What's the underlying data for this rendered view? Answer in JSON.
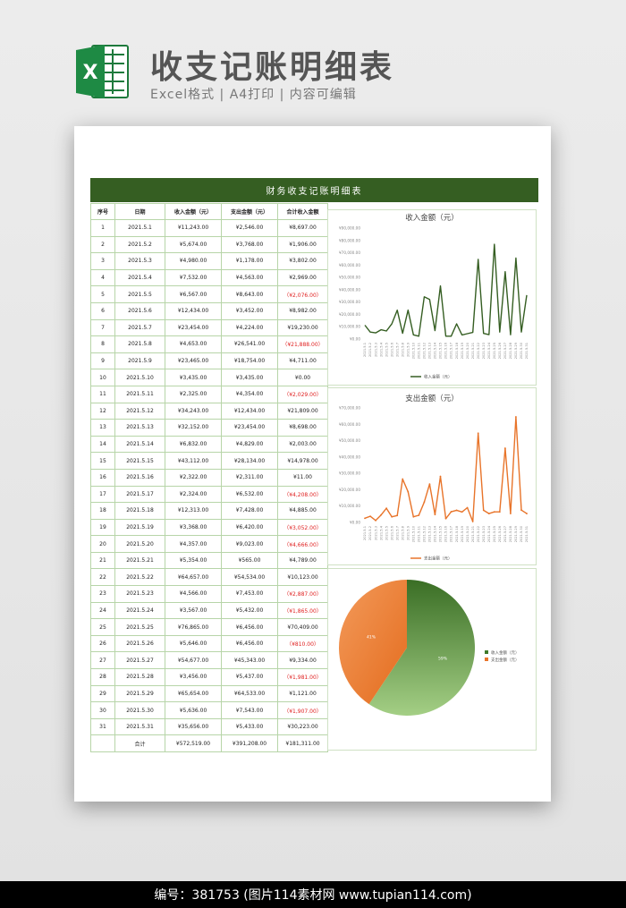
{
  "header": {
    "title": "收支记账明细表",
    "subtitle": "Excel格式 | A4打印 | 内容可编辑",
    "icon_letter": "X"
  },
  "sheet": {
    "banner": "财务收支记账明细表",
    "columns": [
      "序号",
      "日期",
      "收入金额（元）",
      "支出金额（元）",
      "合计收入金额"
    ],
    "rows": [
      {
        "no": "1",
        "date": "2021.5.1",
        "income": "¥11,243.00",
        "expense": "¥2,546.00",
        "total": "¥8,697.00",
        "neg": false
      },
      {
        "no": "2",
        "date": "2021.5.2",
        "income": "¥5,674.00",
        "expense": "¥3,768.00",
        "total": "¥1,906.00",
        "neg": false
      },
      {
        "no": "3",
        "date": "2021.5.3",
        "income": "¥4,980.00",
        "expense": "¥1,178.00",
        "total": "¥3,802.00",
        "neg": false
      },
      {
        "no": "4",
        "date": "2021.5.4",
        "income": "¥7,532.00",
        "expense": "¥4,563.00",
        "total": "¥2,969.00",
        "neg": false
      },
      {
        "no": "5",
        "date": "2021.5.5",
        "income": "¥6,567.00",
        "expense": "¥8,643.00",
        "total": "（¥2,076.00）",
        "neg": true
      },
      {
        "no": "6",
        "date": "2021.5.6",
        "income": "¥12,434.00",
        "expense": "¥3,452.00",
        "total": "¥8,982.00",
        "neg": false
      },
      {
        "no": "7",
        "date": "2021.5.7",
        "income": "¥23,454.00",
        "expense": "¥4,224.00",
        "total": "¥19,230.00",
        "neg": false
      },
      {
        "no": "8",
        "date": "2021.5.8",
        "income": "¥4,653.00",
        "expense": "¥26,541.00",
        "total": "（¥21,888.00）",
        "neg": true
      },
      {
        "no": "9",
        "date": "2021.5.9",
        "income": "¥23,465.00",
        "expense": "¥18,754.00",
        "total": "¥4,711.00",
        "neg": false
      },
      {
        "no": "10",
        "date": "2021.5.10",
        "income": "¥3,435.00",
        "expense": "¥3,435.00",
        "total": "¥0.00",
        "neg": false
      },
      {
        "no": "11",
        "date": "2021.5.11",
        "income": "¥2,325.00",
        "expense": "¥4,354.00",
        "total": "（¥2,029.00）",
        "neg": true
      },
      {
        "no": "12",
        "date": "2021.5.12",
        "income": "¥34,243.00",
        "expense": "¥12,434.00",
        "total": "¥21,809.00",
        "neg": false
      },
      {
        "no": "13",
        "date": "2021.5.13",
        "income": "¥32,152.00",
        "expense": "¥23,454.00",
        "total": "¥8,698.00",
        "neg": false
      },
      {
        "no": "14",
        "date": "2021.5.14",
        "income": "¥6,832.00",
        "expense": "¥4,829.00",
        "total": "¥2,003.00",
        "neg": false
      },
      {
        "no": "15",
        "date": "2021.5.15",
        "income": "¥43,112.00",
        "expense": "¥28,134.00",
        "total": "¥14,978.00",
        "neg": false
      },
      {
        "no": "16",
        "date": "2021.5.16",
        "income": "¥2,322.00",
        "expense": "¥2,311.00",
        "total": "¥11.00",
        "neg": false
      },
      {
        "no": "17",
        "date": "2021.5.17",
        "income": "¥2,324.00",
        "expense": "¥6,532.00",
        "total": "（¥4,208.00）",
        "neg": true
      },
      {
        "no": "18",
        "date": "2021.5.18",
        "income": "¥12,313.00",
        "expense": "¥7,428.00",
        "total": "¥4,885.00",
        "neg": false
      },
      {
        "no": "19",
        "date": "2021.5.19",
        "income": "¥3,368.00",
        "expense": "¥6,420.00",
        "total": "（¥3,052.00）",
        "neg": true
      },
      {
        "no": "20",
        "date": "2021.5.20",
        "income": "¥4,357.00",
        "expense": "¥9,023.00",
        "total": "（¥4,666.00）",
        "neg": true
      },
      {
        "no": "21",
        "date": "2021.5.21",
        "income": "¥5,354.00",
        "expense": "¥565.00",
        "total": "¥4,789.00",
        "neg": false
      },
      {
        "no": "22",
        "date": "2021.5.22",
        "income": "¥64,657.00",
        "expense": "¥54,534.00",
        "total": "¥10,123.00",
        "neg": false
      },
      {
        "no": "23",
        "date": "2021.5.23",
        "income": "¥4,566.00",
        "expense": "¥7,453.00",
        "total": "（¥2,887.00）",
        "neg": true
      },
      {
        "no": "24",
        "date": "2021.5.24",
        "income": "¥3,567.00",
        "expense": "¥5,432.00",
        "total": "（¥1,865.00）",
        "neg": true
      },
      {
        "no": "25",
        "date": "2021.5.25",
        "income": "¥76,865.00",
        "expense": "¥6,456.00",
        "total": "¥70,409.00",
        "neg": false
      },
      {
        "no": "26",
        "date": "2021.5.26",
        "income": "¥5,646.00",
        "expense": "¥6,456.00",
        "total": "（¥810.00）",
        "neg": true
      },
      {
        "no": "27",
        "date": "2021.5.27",
        "income": "¥54,677.00",
        "expense": "¥45,343.00",
        "total": "¥9,334.00",
        "neg": false
      },
      {
        "no": "28",
        "date": "2021.5.28",
        "income": "¥3,456.00",
        "expense": "¥5,437.00",
        "total": "（¥1,981.00）",
        "neg": true
      },
      {
        "no": "29",
        "date": "2021.5.29",
        "income": "¥65,654.00",
        "expense": "¥64,533.00",
        "total": "¥1,121.00",
        "neg": false
      },
      {
        "no": "30",
        "date": "2021.5.30",
        "income": "¥5,636.00",
        "expense": "¥7,543.00",
        "total": "（¥1,907.00）",
        "neg": true
      },
      {
        "no": "31",
        "date": "2021.5.31",
        "income": "¥35,656.00",
        "expense": "¥5,433.00",
        "total": "¥30,223.00",
        "neg": false
      }
    ],
    "totals": {
      "label": "合计",
      "income": "¥572,519.00",
      "expense": "¥391,208.00",
      "total": "¥181,311.00"
    }
  },
  "chart_data": [
    {
      "type": "line",
      "title": "收入金额（元）",
      "legend": "收入金额（元）",
      "color": "#355e22",
      "ylim": [
        0,
        90000
      ],
      "y_ticks": [
        "¥0.00",
        "¥10,000.00",
        "¥20,000.00",
        "¥30,000.00",
        "¥40,000.00",
        "¥50,000.00",
        "¥60,000.00",
        "¥70,000.00",
        "¥80,000.00",
        "¥90,000.00"
      ],
      "categories": [
        "2021.5.1",
        "2021.5.2",
        "2021.5.3",
        "2021.5.4",
        "2021.5.5",
        "2021.5.6",
        "2021.5.7",
        "2021.5.8",
        "2021.5.9",
        "2021.5.10",
        "2021.5.11",
        "2021.5.12",
        "2021.5.13",
        "2021.5.14",
        "2021.5.15",
        "2021.5.16",
        "2021.5.17",
        "2021.5.18",
        "2021.5.19",
        "2021.5.20",
        "2021.5.21",
        "2021.5.22",
        "2021.5.23",
        "2021.5.24",
        "2021.5.25",
        "2021.5.26",
        "2021.5.27",
        "2021.5.28",
        "2021.5.29",
        "2021.5.30",
        "2021.5.31"
      ],
      "values": [
        11243,
        5674,
        4980,
        7532,
        6567,
        12434,
        23454,
        4653,
        23465,
        3435,
        2325,
        34243,
        32152,
        6832,
        43112,
        2322,
        2324,
        12313,
        3368,
        4357,
        5354,
        64657,
        4566,
        3567,
        76865,
        5646,
        54677,
        3456,
        65654,
        5636,
        35656
      ]
    },
    {
      "type": "line",
      "title": "支出金额（元）",
      "legend": "支出金额（元）",
      "color": "#e8742a",
      "ylim": [
        0,
        70000
      ],
      "y_ticks": [
        "¥0.00",
        "¥10,000.00",
        "¥20,000.00",
        "¥30,000.00",
        "¥40,000.00",
        "¥50,000.00",
        "¥60,000.00",
        "¥70,000.00"
      ],
      "categories": [
        "2021.5.1",
        "2021.5.2",
        "2021.5.3",
        "2021.5.4",
        "2021.5.5",
        "2021.5.6",
        "2021.5.7",
        "2021.5.8",
        "2021.5.9",
        "2021.5.10",
        "2021.5.11",
        "2021.5.12",
        "2021.5.13",
        "2021.5.14",
        "2021.5.15",
        "2021.5.16",
        "2021.5.17",
        "2021.5.18",
        "2021.5.19",
        "2021.5.20",
        "2021.5.21",
        "2021.5.22",
        "2021.5.23",
        "2021.5.24",
        "2021.5.25",
        "2021.5.26",
        "2021.5.27",
        "2021.5.28",
        "2021.5.29",
        "2021.5.30",
        "2021.5.31"
      ],
      "values": [
        2546,
        3768,
        1178,
        4563,
        8643,
        3452,
        4224,
        26541,
        18754,
        3435,
        4354,
        12434,
        23454,
        4829,
        28134,
        2311,
        6532,
        7428,
        6420,
        9023,
        565,
        54534,
        7453,
        5432,
        6456,
        6456,
        45343,
        5437,
        64533,
        7543,
        5433
      ]
    },
    {
      "type": "pie",
      "series": [
        {
          "name": "收入金额（元）",
          "value": 572519,
          "label": "59%",
          "color": "#3f7a2a"
        },
        {
          "name": "支出金额（元）",
          "value": 391208,
          "label": "41%",
          "color": "#e8742a"
        }
      ]
    }
  ],
  "footer": {
    "text": "编号：381753 (图片114素材网 www.tupian114.com)"
  }
}
